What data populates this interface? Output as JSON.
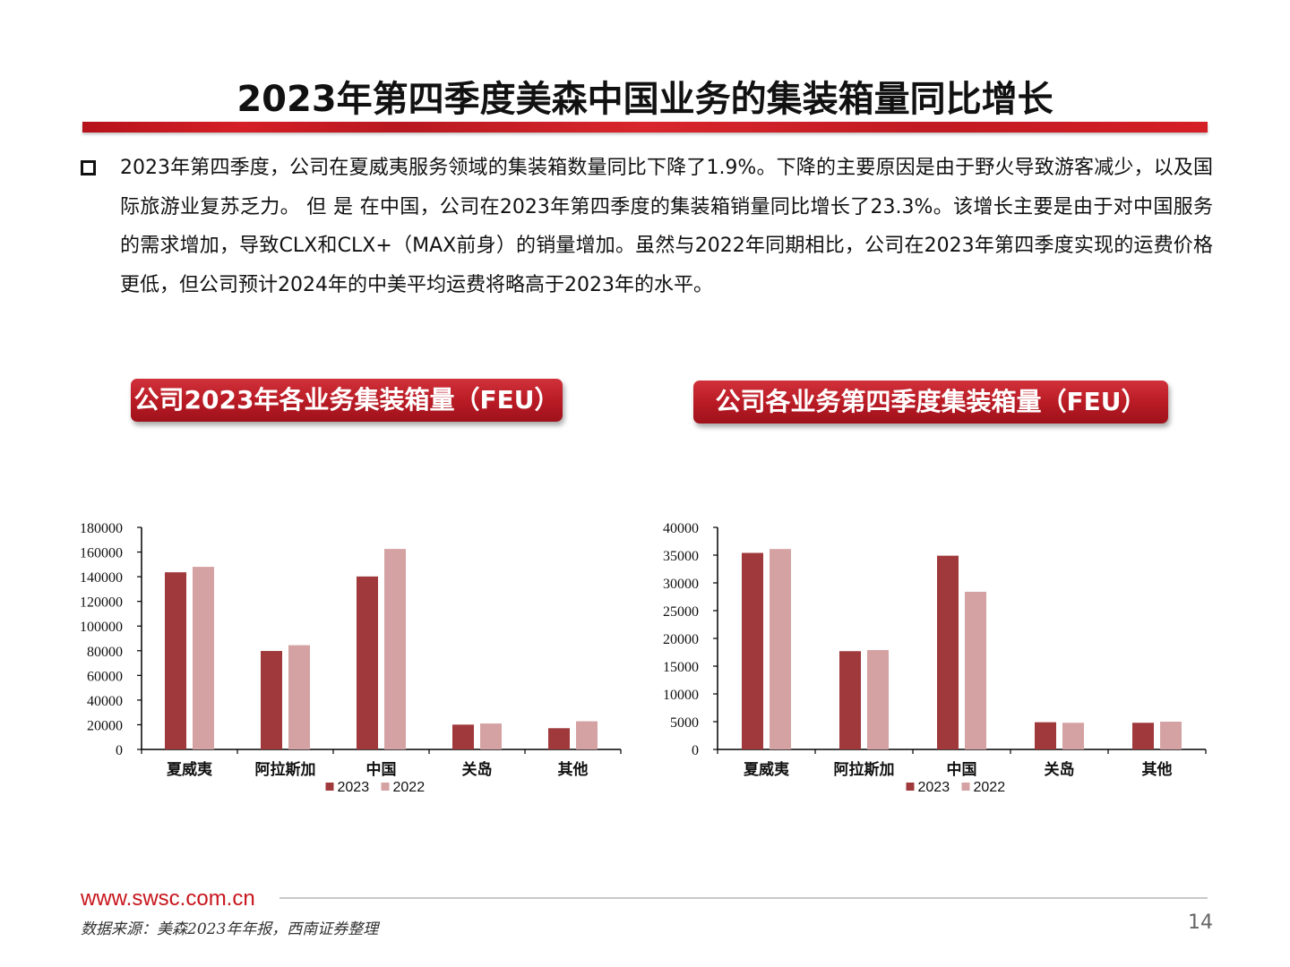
{
  "title": "2023年第四季度美森中国业务的集装箱量同比增长",
  "body_text": "2023年第四季度，公司在夏威夷服务领域的集装箱数量同比下降了1.9%。下降的主要原因是由于野火导致游客减少，以及国际旅游业复苏乏力。 但 是 在中国，公司在2023年第四季度的集装箱销量同比增长了23.3%。该增长主要是由于对中国服务的需求增加，导致CLX和CLX+（MAX前身）的销量增加。虽然与2022年同期相比，公司在2023年第四季度实现的运费价格更低，但公司预计2024年的中美平均运费将略高于2023年的水平。",
  "chart_titles": [
    "公司2023年各业务集装箱量（FEU）",
    "公司各业务第四季度集装箱量（FEU）"
  ],
  "chart_data": [
    {
      "type": "bar",
      "categories": [
        "夏威夷",
        "阿拉斯加",
        "中国",
        "关岛",
        "其他"
      ],
      "series": [
        {
          "name": "2023",
          "color": "#a0393b",
          "values": [
            143600,
            79800,
            140200,
            20100,
            17200
          ]
        },
        {
          "name": "2022",
          "color": "#d4a2a2",
          "values": [
            148000,
            84500,
            162500,
            21000,
            22800
          ]
        }
      ],
      "ylim": [
        0,
        180000
      ],
      "yticks": [
        0,
        20000,
        40000,
        60000,
        80000,
        100000,
        120000,
        140000,
        160000,
        180000
      ],
      "legend": "bottom"
    },
    {
      "type": "bar",
      "categories": [
        "夏威夷",
        "阿拉斯加",
        "中国",
        "关岛",
        "其他"
      ],
      "series": [
        {
          "name": "2023",
          "color": "#a0393b",
          "values": [
            35400,
            17700,
            34900,
            4900,
            4800
          ]
        },
        {
          "name": "2022",
          "color": "#d4a2a2",
          "values": [
            36100,
            17900,
            28400,
            4800,
            5000
          ]
        }
      ],
      "ylim": [
        0,
        40000
      ],
      "yticks": [
        0,
        5000,
        10000,
        15000,
        20000,
        25000,
        30000,
        35000,
        40000
      ],
      "legend": "bottom"
    }
  ],
  "footer": {
    "url": "www.swsc.com.cn",
    "source": "数据来源：美森2023年年报，西南证券整理",
    "page": "14"
  }
}
